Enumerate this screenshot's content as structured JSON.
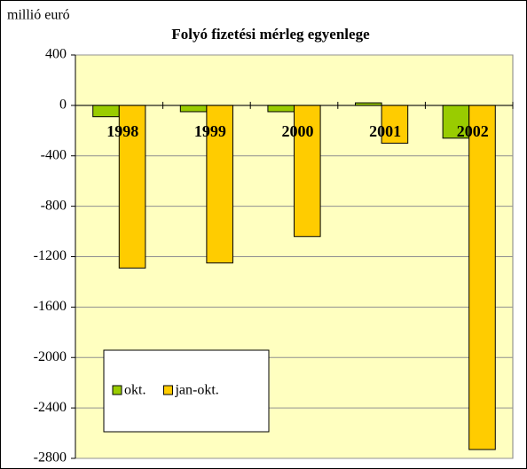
{
  "chart_data": {
    "type": "bar",
    "title": "Folyó fizetési mérleg egyenlege",
    "y_label": "millió euró",
    "categories": [
      "1998",
      "1999",
      "2000",
      "2001",
      "2002"
    ],
    "series": [
      {
        "name": "okt.",
        "color": "#99cc00",
        "values": [
          -90,
          -50,
          -50,
          20,
          -260
        ]
      },
      {
        "name": "jan-okt.",
        "color": "#ffcc00",
        "values": [
          -1290,
          -1250,
          -1040,
          -300,
          -2730
        ]
      }
    ],
    "ylim": [
      -2800,
      400
    ],
    "yticks": [
      -2800,
      -2400,
      -2000,
      -1600,
      -1200,
      -800,
      -400,
      0,
      400
    ],
    "grid": true,
    "legend": "lower left",
    "plot_color": "#ffffc0"
  }
}
